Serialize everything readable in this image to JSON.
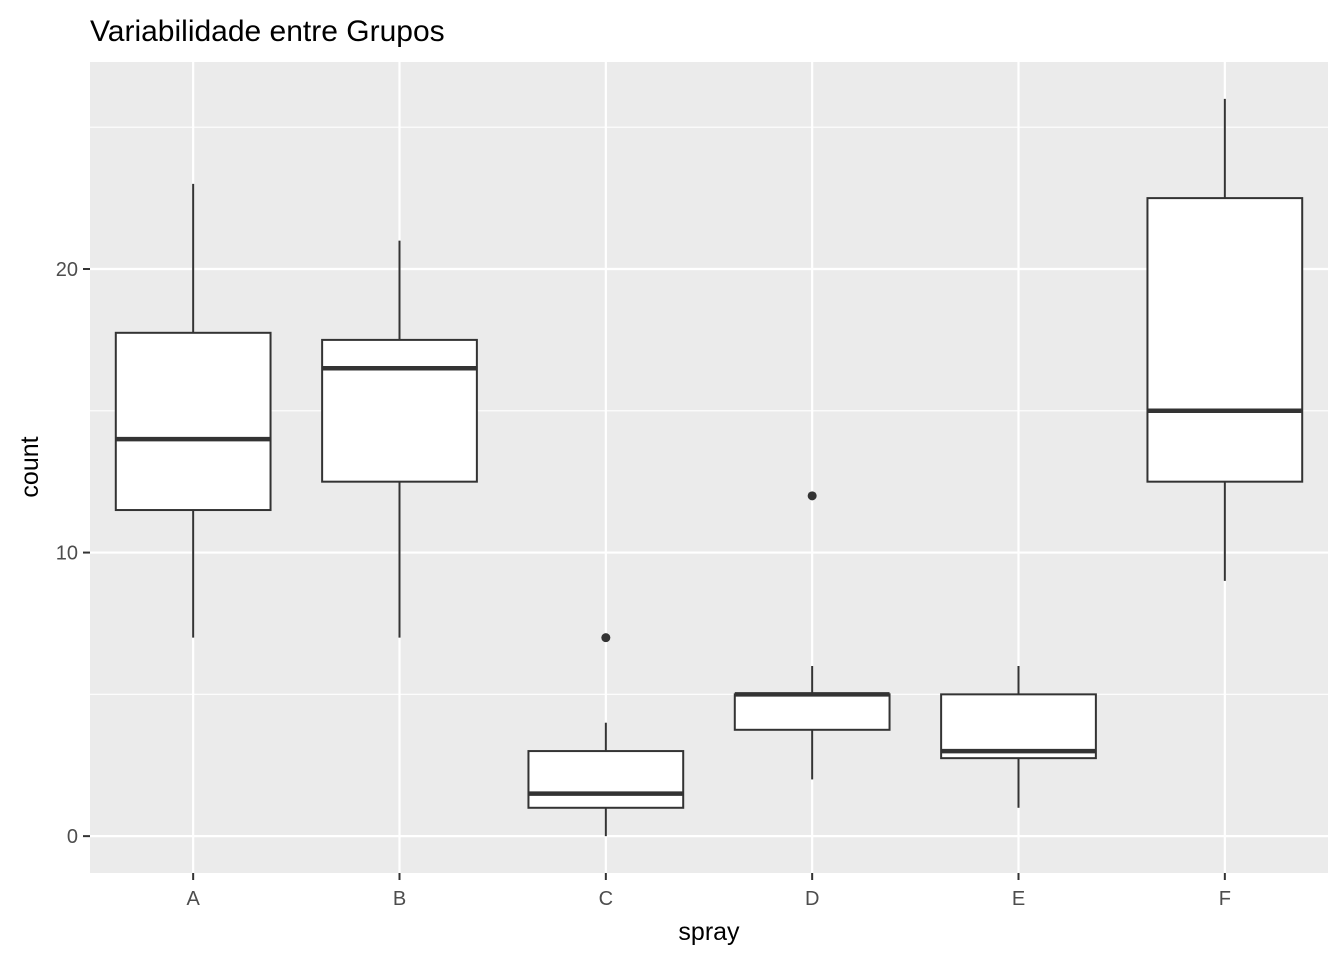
{
  "chart_data": {
    "type": "boxplot",
    "title": "Variabilidade entre Grupos",
    "xlabel": "spray",
    "ylabel": "count",
    "categories": [
      "A",
      "B",
      "C",
      "D",
      "E",
      "F"
    ],
    "boxes": [
      {
        "category": "A",
        "whisker_low": 7,
        "q1": 11.5,
        "median": 14,
        "q3": 17.75,
        "whisker_high": 23,
        "outliers": []
      },
      {
        "category": "B",
        "whisker_low": 7,
        "q1": 12.5,
        "median": 16.5,
        "q3": 17.5,
        "whisker_high": 21,
        "outliers": []
      },
      {
        "category": "C",
        "whisker_low": 0,
        "q1": 1,
        "median": 1.5,
        "q3": 3,
        "whisker_high": 4,
        "outliers": [
          7
        ]
      },
      {
        "category": "D",
        "whisker_low": 2,
        "q1": 3.75,
        "median": 5,
        "q3": 5,
        "whisker_high": 6,
        "outliers": [
          12
        ]
      },
      {
        "category": "E",
        "whisker_low": 1,
        "q1": 2.75,
        "median": 3,
        "q3": 5,
        "whisker_high": 6,
        "outliers": []
      },
      {
        "category": "F",
        "whisker_low": 9,
        "q1": 12.5,
        "median": 15,
        "q3": 22.5,
        "whisker_high": 26,
        "outliers": []
      }
    ],
    "y_ticks": [
      0,
      10,
      20
    ],
    "ylim": [
      -1.3,
      27.3
    ],
    "grid": true,
    "legend": "none",
    "colors": {
      "panel_background": "#ebebeb",
      "grid": "#ffffff",
      "box_fill": "#ffffff",
      "box_stroke": "#333333"
    }
  }
}
